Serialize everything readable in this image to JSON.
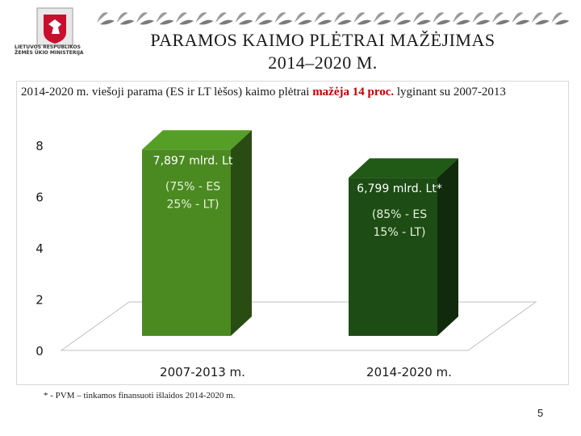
{
  "slide": {
    "title_line1": "PARAMOS KAIMO PLĖTRAI MAŽĖJIMAS",
    "title_line2": "2014–2020 M.",
    "ministry_line1": "LIETUVOS RESPUBLIKOS",
    "ministry_line2": "ŽEMĖS ŪKIO MINISTERIJA",
    "subtitle_prefix": "2014-2020 m. viešoji parama (ES ir LT lėšos) kaimo plėtrai ",
    "subtitle_highlight": "mažėja 14 proc.",
    "subtitle_suffix": " lyginant su 2007-2013",
    "footnote": "* - PVM – tinkamos finansuoti išlaidos 2014-2020 m.",
    "page_number": "5"
  },
  "colors": {
    "bar1": "#4b8a21",
    "bar2": "#1d4d14",
    "highlight": "#c00000",
    "ornament": "#9a9a9a"
  },
  "chart_data": {
    "type": "bar",
    "categories": [
      "2007-2013 m.",
      "2014-2020 m."
    ],
    "values": [
      7.897,
      6.799
    ],
    "ylim": [
      0,
      8
    ],
    "yticks": [
      "0",
      "2",
      "4",
      "6",
      "8"
    ],
    "grid": false,
    "data_labels": [
      "7,897 mlrd. Lt",
      "6,799 mlrd. Lt*"
    ],
    "annotations": [
      [
        "(75% - ES",
        "25% - LT)"
      ],
      [
        "(85% - ES",
        "15% - LT)"
      ]
    ]
  }
}
